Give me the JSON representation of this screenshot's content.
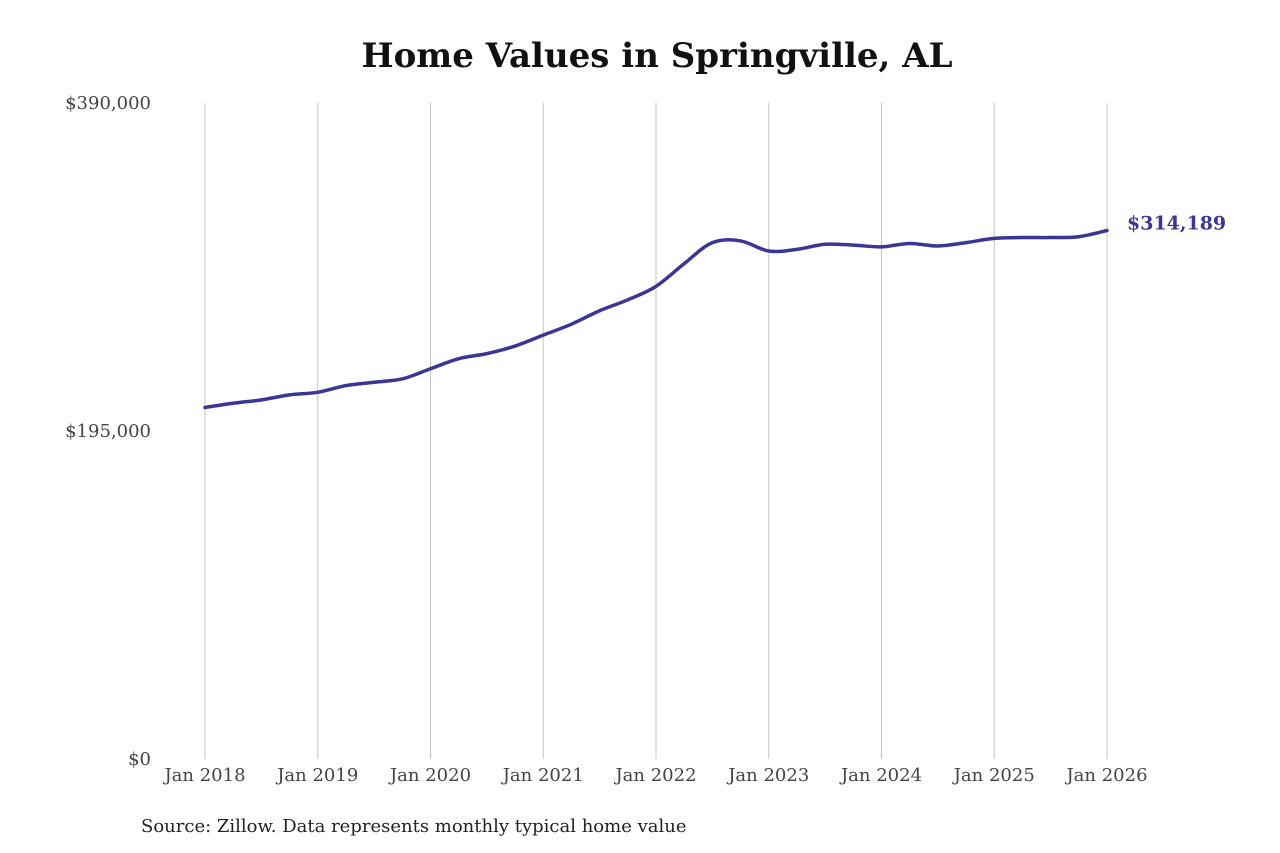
{
  "chart_data": {
    "type": "line",
    "title": "Home Values in Springville, AL",
    "xlabel": "",
    "ylabel": "",
    "ylim": [
      0,
      390000
    ],
    "y_ticks": [
      {
        "value": 0,
        "label": "$0"
      },
      {
        "value": 195000,
        "label": "$195,000"
      },
      {
        "value": 390000,
        "label": "$390,000"
      }
    ],
    "x_ticks": [
      {
        "value": 2018,
        "label": "Jan 2018"
      },
      {
        "value": 2019,
        "label": "Jan 2019"
      },
      {
        "value": 2020,
        "label": "Jan 2020"
      },
      {
        "value": 2021,
        "label": "Jan 2021"
      },
      {
        "value": 2022,
        "label": "Jan 2022"
      },
      {
        "value": 2023,
        "label": "Jan 2023"
      },
      {
        "value": 2024,
        "label": "Jan 2024"
      },
      {
        "value": 2025,
        "label": "Jan 2025"
      },
      {
        "value": 2026,
        "label": "Jan 2026"
      }
    ],
    "grid": "vertical",
    "line_color": "#3b3596",
    "series": [
      {
        "x": [
          "2018-01",
          "2018-04",
          "2018-07",
          "2018-10",
          "2019-01",
          "2019-04",
          "2019-07",
          "2019-10",
          "2020-01",
          "2020-04",
          "2020-07",
          "2020-10",
          "2021-01",
          "2021-04",
          "2021-07",
          "2021-10",
          "2022-01",
          "2022-04",
          "2022-07",
          "2022-10",
          "2023-01",
          "2023-04",
          "2023-07",
          "2023-10",
          "2024-01",
          "2024-04",
          "2024-07",
          "2024-10",
          "2025-01",
          "2025-04",
          "2025-07",
          "2025-10",
          "2026-01"
        ],
        "values": [
          209000,
          211500,
          213500,
          216500,
          218000,
          222000,
          224000,
          226000,
          232000,
          238000,
          241000,
          245500,
          252000,
          258500,
          266500,
          273000,
          281000,
          294500,
          307000,
          308000,
          302000,
          303000,
          306000,
          305500,
          304500,
          306500,
          305000,
          307000,
          309500,
          310000,
          310000,
          310500,
          314189
        ]
      }
    ],
    "end_label": "$314,189"
  },
  "source": "Source: Zillow. Data represents monthly typical home value"
}
